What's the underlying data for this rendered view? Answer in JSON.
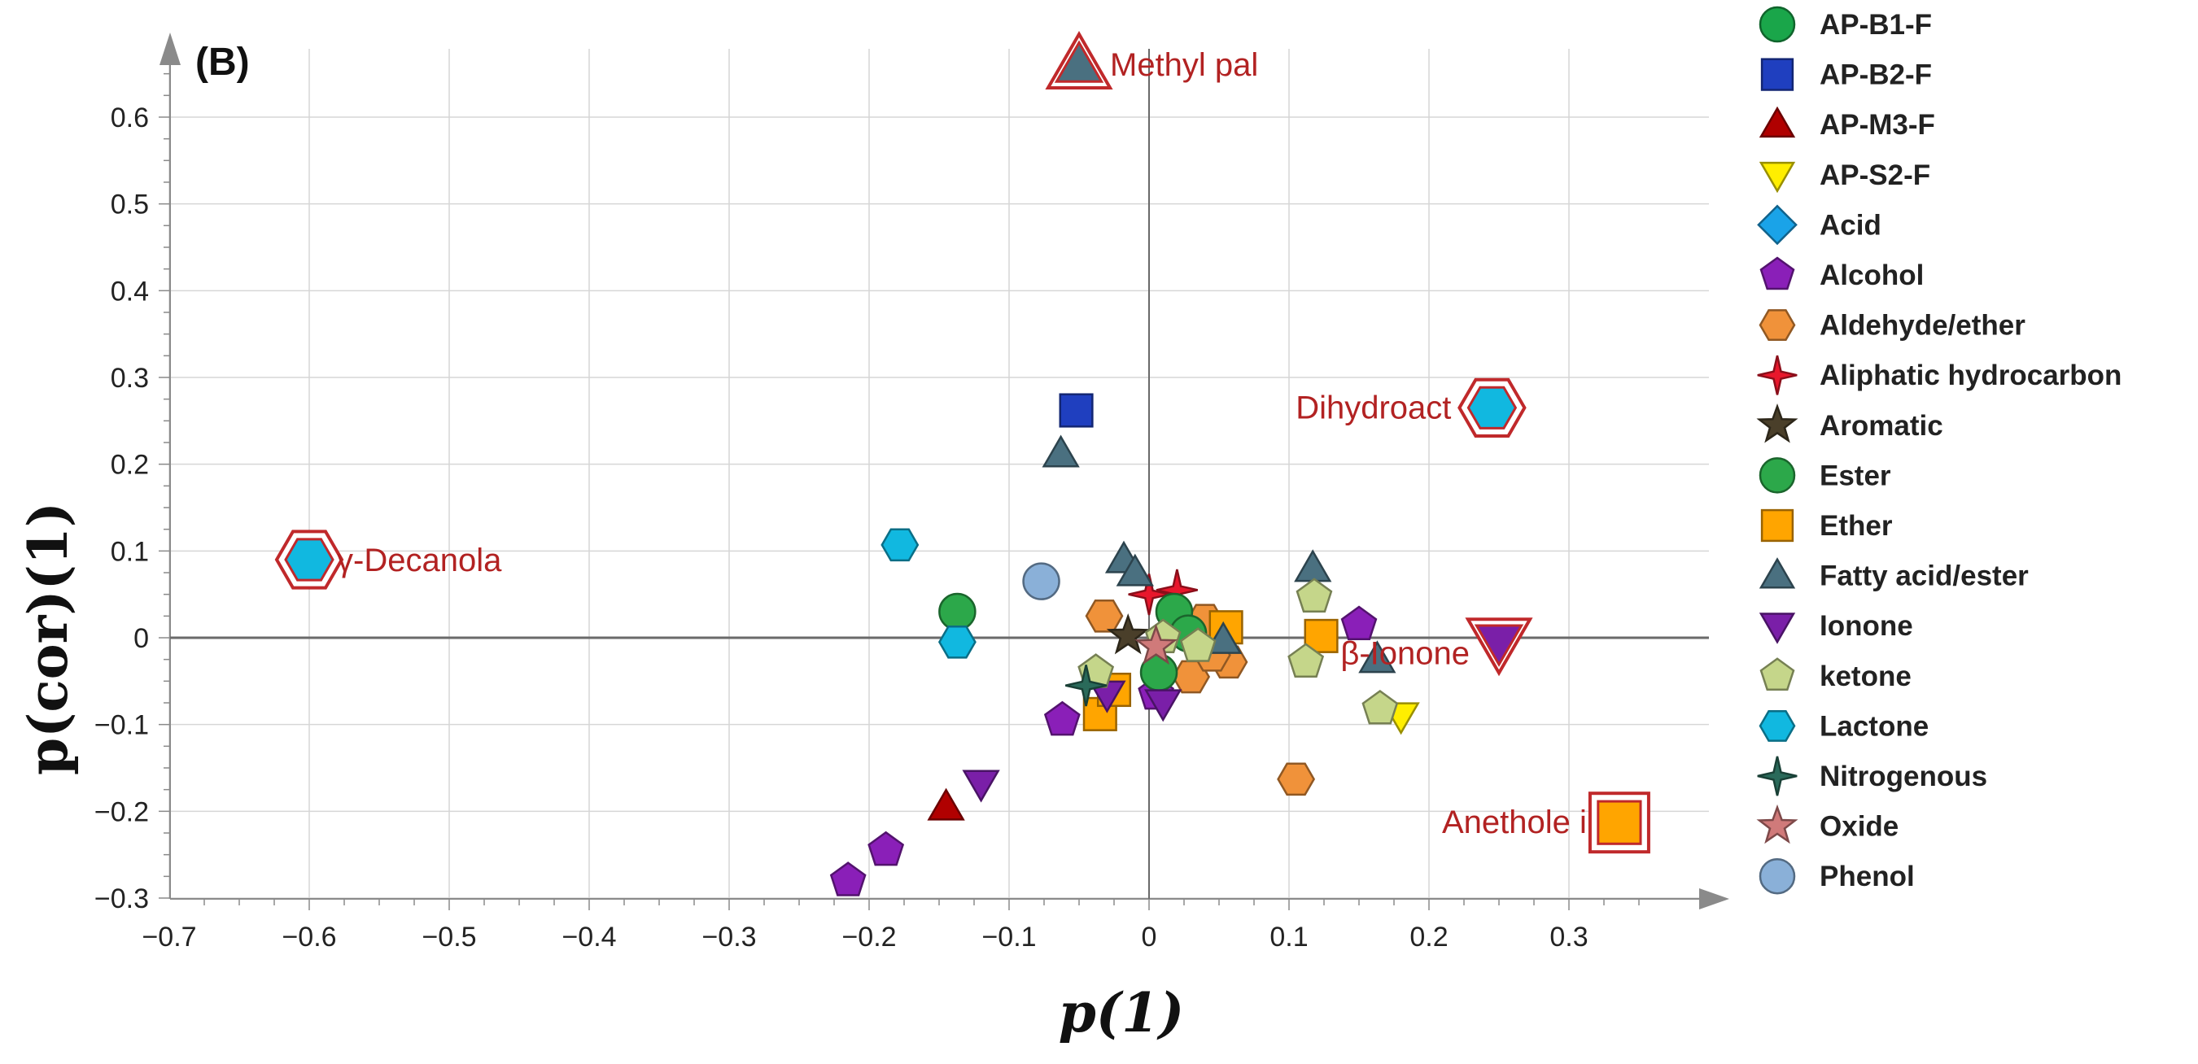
{
  "panel_label": "(B)",
  "colors": {
    "AP-B1-F": "#1aa64a",
    "AP-B2-F": "#1f3fbf",
    "AP-M3-F": "#b00000",
    "AP-S2-F": "#ffee00",
    "Acid": "#1aa3e8",
    "Alcohol": "#8a1fb8",
    "Aldehyde/ether": "#f0923a",
    "Aliphatic hydrocarbon": "#e8172c",
    "Aromatic": "#4a3f2a",
    "Ester": "#2ca84a",
    "Ether": "#ffa500",
    "Fatty acid/ester": "#4a7080",
    "Ionone": "#7a1fa8",
    "ketone": "#c5d68a",
    "Lactone": "#11b8e0",
    "Nitrogenous": "#2a6a5a",
    "Oxide": "#d07a7a",
    "Phenol": "#8ab0d8",
    "highlight": "#c0292b"
  },
  "chart_data": {
    "type": "scatter",
    "title": "(B)",
    "xlabel": "p(1)",
    "ylabel": "p(cor)(1)",
    "xlim": [
      -0.7,
      0.4
    ],
    "ylim": [
      -0.3,
      0.65
    ],
    "x_ticks": [
      -0.7,
      -0.6,
      -0.5,
      -0.4,
      -0.3,
      -0.2,
      -0.1,
      0,
      0.1,
      0.2,
      0.3
    ],
    "x_tick_labels": [
      "−0.7",
      "−0.6",
      "−0.5",
      "−0.4",
      "−0.3",
      "−0.2",
      "−0.1",
      "0",
      "0.1",
      "0.2",
      "0.3"
    ],
    "y_ticks": [
      -0.3,
      -0.2,
      -0.1,
      0,
      0.1,
      0.2,
      0.3,
      0.4,
      0.5,
      0.6
    ],
    "y_tick_labels": [
      "−0.3",
      "−0.2",
      "−0.1",
      "0",
      "0.1",
      "0.2",
      "0.3",
      "0.4",
      "0.5",
      "0.6"
    ],
    "grid": true,
    "legend_position": "right",
    "legend": [
      {
        "label": "AP-B1-F",
        "shape": "circle",
        "color": "#1aa64a"
      },
      {
        "label": "AP-B2-F",
        "shape": "square",
        "color": "#1f3fbf"
      },
      {
        "label": "AP-M3-F",
        "shape": "triangle",
        "color": "#b00000"
      },
      {
        "label": "AP-S2-F",
        "shape": "triangle-down",
        "color": "#ffee00"
      },
      {
        "label": "Acid",
        "shape": "diamond",
        "color": "#1aa3e8"
      },
      {
        "label": "Alcohol",
        "shape": "pentagon",
        "color": "#8a1fb8"
      },
      {
        "label": "Aldehyde/ether",
        "shape": "hexagon",
        "color": "#f0923a"
      },
      {
        "label": "Aliphatic hydrocarbon",
        "shape": "star4",
        "color": "#e8172c"
      },
      {
        "label": "Aromatic",
        "shape": "star5",
        "color": "#4a3f2a"
      },
      {
        "label": "Ester",
        "shape": "circle",
        "color": "#2ca84a"
      },
      {
        "label": "Ether",
        "shape": "square",
        "color": "#ffa500"
      },
      {
        "label": "Fatty acid/ester",
        "shape": "triangle",
        "color": "#4a7080"
      },
      {
        "label": "Ionone",
        "shape": "triangle-down",
        "color": "#7a1fa8"
      },
      {
        "label": "ketone",
        "shape": "pentagon",
        "color": "#c5d68a"
      },
      {
        "label": "Lactone",
        "shape": "hexagon",
        "color": "#11b8e0"
      },
      {
        "label": "Nitrogenous",
        "shape": "star4",
        "color": "#2a6a5a"
      },
      {
        "label": "Oxide",
        "shape": "star5",
        "color": "#d07a7a"
      },
      {
        "label": "Phenol",
        "shape": "circle",
        "color": "#8ab0d8"
      }
    ],
    "annotations": [
      {
        "text": "Methyl pal",
        "x": -0.05,
        "y": 0.66,
        "marker": "triangle",
        "category": "Fatty acid/ester"
      },
      {
        "text": "Dihydroact",
        "x": 0.245,
        "y": 0.265,
        "marker": "hexagon",
        "category": "Lactone"
      },
      {
        "text": "γ-Decanola",
        "x": -0.6,
        "y": 0.09,
        "marker": "hexagon",
        "category": "Lactone"
      },
      {
        "text": "β-Ionone",
        "x": 0.25,
        "y": -0.005,
        "marker": "triangle-down",
        "category": "Ionone"
      },
      {
        "text": "Anethole i",
        "x": 0.336,
        "y": -0.213,
        "marker": "square",
        "category": "Ether"
      }
    ],
    "series": [
      {
        "name": "AP-B2-F",
        "points": [
          [
            -0.052,
            0.262
          ]
        ]
      },
      {
        "name": "AP-M3-F",
        "points": [
          [
            -0.145,
            -0.195
          ]
        ]
      },
      {
        "name": "AP-S2-F",
        "points": [
          [
            0.18,
            -0.09
          ]
        ]
      },
      {
        "name": "Alcohol",
        "points": [
          [
            -0.215,
            -0.28
          ],
          [
            -0.188,
            -0.245
          ],
          [
            -0.062,
            -0.095
          ],
          [
            0.15,
            0.015
          ],
          [
            0.005,
            -0.065
          ]
        ]
      },
      {
        "name": "Aldehyde/ether",
        "points": [
          [
            0.105,
            -0.163
          ],
          [
            0.057,
            -0.028
          ],
          [
            -0.032,
            0.025
          ],
          [
            0.04,
            0.02
          ],
          [
            0.03,
            -0.045
          ],
          [
            0.045,
            -0.02
          ]
        ]
      },
      {
        "name": "Aliphatic hydrocarbon",
        "points": [
          [
            0.0,
            0.05
          ],
          [
            0.02,
            0.055
          ]
        ]
      },
      {
        "name": "Aromatic",
        "points": [
          [
            -0.015,
            0.002
          ]
        ]
      },
      {
        "name": "Ester",
        "points": [
          [
            -0.137,
            0.03
          ],
          [
            0.018,
            0.03
          ],
          [
            0.007,
            -0.04
          ],
          [
            0.028,
            0.005
          ]
        ]
      },
      {
        "name": "Ether",
        "points": [
          [
            -0.035,
            -0.088
          ],
          [
            0.123,
            0.002
          ],
          [
            0.055,
            0.012
          ],
          [
            -0.025,
            -0.06
          ]
        ]
      },
      {
        "name": "Fatty acid/ester",
        "points": [
          [
            -0.063,
            0.212
          ],
          [
            -0.018,
            0.09
          ],
          [
            -0.01,
            0.075
          ],
          [
            0.117,
            0.08
          ],
          [
            0.053,
            -0.003
          ],
          [
            0.163,
            -0.025
          ]
        ]
      },
      {
        "name": "Ionone",
        "points": [
          [
            -0.12,
            -0.168
          ],
          [
            -0.03,
            -0.065
          ],
          [
            0.01,
            -0.075
          ]
        ]
      },
      {
        "name": "ketone",
        "points": [
          [
            0.118,
            0.047
          ],
          [
            0.112,
            -0.028
          ],
          [
            0.165,
            -0.082
          ],
          [
            -0.038,
            -0.04
          ],
          [
            0.01,
            0.0
          ],
          [
            0.035,
            -0.01
          ]
        ]
      },
      {
        "name": "Lactone",
        "points": [
          [
            -0.178,
            0.107
          ],
          [
            -0.137,
            -0.005
          ]
        ]
      },
      {
        "name": "Nitrogenous",
        "points": [
          [
            -0.045,
            -0.055
          ]
        ]
      },
      {
        "name": "Oxide",
        "points": [
          [
            0.005,
            -0.01
          ]
        ]
      },
      {
        "name": "Phenol",
        "points": [
          [
            -0.077,
            0.065
          ]
        ]
      }
    ]
  }
}
